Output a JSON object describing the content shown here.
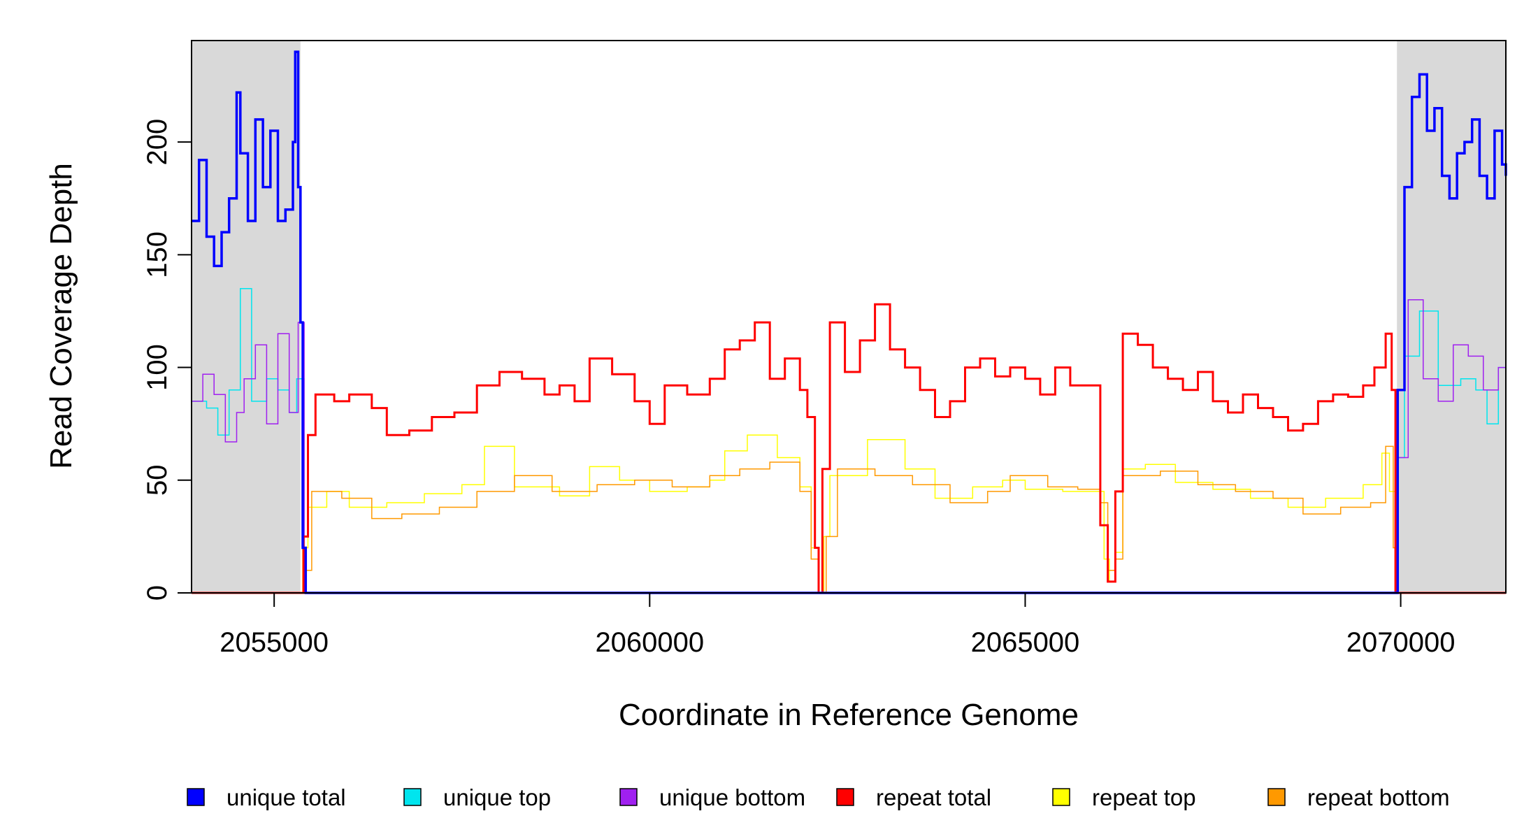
{
  "chart_data": {
    "type": "line",
    "xlabel": "Coordinate in Reference Genome",
    "ylabel": "Read Coverage Depth",
    "xlim": [
      2053900,
      2071400
    ],
    "ylim": [
      0,
      245
    ],
    "x_ticks": [
      {
        "value": 2055000,
        "label": "2055000"
      },
      {
        "value": 2060000,
        "label": "2060000"
      },
      {
        "value": 2065000,
        "label": "2065000"
      },
      {
        "value": 2070000,
        "label": "2070000"
      }
    ],
    "y_ticks": [
      {
        "value": 0,
        "label": "0"
      },
      {
        "value": 50,
        "label": "50"
      },
      {
        "value": 100,
        "label": "100"
      },
      {
        "value": 150,
        "label": "150"
      },
      {
        "value": 200,
        "label": "200"
      }
    ],
    "shaded_regions": [
      {
        "from": 2053900,
        "to": 2055350,
        "color": "#d9d9d9"
      },
      {
        "from": 2069950,
        "to": 2071400,
        "color": "#d9d9d9"
      }
    ],
    "legend_position": "bottom",
    "series": [
      {
        "name": "repeat top",
        "color": "#ffff00",
        "width": 1.5,
        "points": [
          [
            2053900,
            0
          ],
          [
            2055300,
            0
          ],
          [
            2055380,
            20
          ],
          [
            2055450,
            38
          ],
          [
            2055700,
            45
          ],
          [
            2056000,
            38
          ],
          [
            2056500,
            40
          ],
          [
            2057000,
            44
          ],
          [
            2057500,
            48
          ],
          [
            2057800,
            65
          ],
          [
            2058200,
            47
          ],
          [
            2058800,
            43
          ],
          [
            2059200,
            56
          ],
          [
            2059600,
            50
          ],
          [
            2060000,
            45
          ],
          [
            2060500,
            47
          ],
          [
            2060800,
            50
          ],
          [
            2061000,
            63
          ],
          [
            2061300,
            70
          ],
          [
            2061700,
            60
          ],
          [
            2062000,
            47
          ],
          [
            2062150,
            20
          ],
          [
            2062250,
            0
          ],
          [
            2062320,
            25
          ],
          [
            2062400,
            52
          ],
          [
            2062900,
            68
          ],
          [
            2063400,
            55
          ],
          [
            2063800,
            42
          ],
          [
            2064300,
            47
          ],
          [
            2064700,
            50
          ],
          [
            2065000,
            46
          ],
          [
            2065500,
            45
          ],
          [
            2065900,
            45
          ],
          [
            2066050,
            15
          ],
          [
            2066120,
            5
          ],
          [
            2066200,
            18
          ],
          [
            2066300,
            55
          ],
          [
            2066600,
            57
          ],
          [
            2067000,
            49
          ],
          [
            2067500,
            46
          ],
          [
            2068000,
            42
          ],
          [
            2068500,
            38
          ],
          [
            2069000,
            42
          ],
          [
            2069500,
            48
          ],
          [
            2069750,
            62
          ],
          [
            2069850,
            45
          ],
          [
            2069930,
            0
          ],
          [
            2071400,
            0
          ]
        ]
      },
      {
        "name": "repeat bottom",
        "color": "#ff9900",
        "width": 1.5,
        "points": [
          [
            2053900,
            0
          ],
          [
            2055300,
            0
          ],
          [
            2055400,
            10
          ],
          [
            2055500,
            45
          ],
          [
            2055900,
            42
          ],
          [
            2056300,
            33
          ],
          [
            2056700,
            35
          ],
          [
            2057200,
            38
          ],
          [
            2057700,
            45
          ],
          [
            2058200,
            52
          ],
          [
            2058700,
            45
          ],
          [
            2059300,
            48
          ],
          [
            2059800,
            50
          ],
          [
            2060300,
            47
          ],
          [
            2060800,
            52
          ],
          [
            2061200,
            55
          ],
          [
            2061600,
            58
          ],
          [
            2062000,
            45
          ],
          [
            2062150,
            15
          ],
          [
            2062250,
            0
          ],
          [
            2062350,
            25
          ],
          [
            2062500,
            55
          ],
          [
            2063000,
            52
          ],
          [
            2063500,
            48
          ],
          [
            2064000,
            40
          ],
          [
            2064500,
            45
          ],
          [
            2064800,
            52
          ],
          [
            2065300,
            47
          ],
          [
            2065700,
            46
          ],
          [
            2066000,
            40
          ],
          [
            2066100,
            10
          ],
          [
            2066200,
            15
          ],
          [
            2066300,
            52
          ],
          [
            2066800,
            54
          ],
          [
            2067300,
            48
          ],
          [
            2067800,
            45
          ],
          [
            2068300,
            42
          ],
          [
            2068700,
            35
          ],
          [
            2069200,
            38
          ],
          [
            2069600,
            40
          ],
          [
            2069800,
            65
          ],
          [
            2069900,
            20
          ],
          [
            2069930,
            0
          ],
          [
            2071400,
            0
          ]
        ]
      },
      {
        "name": "unique top",
        "color": "#00e5ee",
        "width": 1.5,
        "points": [
          [
            2053900,
            85
          ],
          [
            2054100,
            82
          ],
          [
            2054250,
            70
          ],
          [
            2054400,
            90
          ],
          [
            2054550,
            135
          ],
          [
            2054700,
            85
          ],
          [
            2054900,
            95
          ],
          [
            2055050,
            90
          ],
          [
            2055200,
            80
          ],
          [
            2055300,
            95
          ],
          [
            2055400,
            0
          ],
          [
            2069900,
            0
          ],
          [
            2069960,
            60
          ],
          [
            2070050,
            105
          ],
          [
            2070250,
            125
          ],
          [
            2070500,
            92
          ],
          [
            2070800,
            95
          ],
          [
            2071000,
            90
          ],
          [
            2071150,
            75
          ],
          [
            2071300,
            100
          ],
          [
            2071400,
            95
          ]
        ]
      },
      {
        "name": "unique bottom",
        "color": "#a020f0",
        "width": 1.5,
        "points": [
          [
            2053900,
            85
          ],
          [
            2054050,
            97
          ],
          [
            2054200,
            88
          ],
          [
            2054350,
            67
          ],
          [
            2054500,
            80
          ],
          [
            2054600,
            95
          ],
          [
            2054750,
            110
          ],
          [
            2054900,
            75
          ],
          [
            2055050,
            115
          ],
          [
            2055200,
            80
          ],
          [
            2055320,
            120
          ],
          [
            2055400,
            0
          ],
          [
            2069900,
            0
          ],
          [
            2069960,
            60
          ],
          [
            2070100,
            130
          ],
          [
            2070300,
            95
          ],
          [
            2070500,
            85
          ],
          [
            2070700,
            110
          ],
          [
            2070900,
            105
          ],
          [
            2071100,
            90
          ],
          [
            2071300,
            100
          ],
          [
            2071400,
            95
          ]
        ]
      },
      {
        "name": "repeat total",
        "color": "#ff0000",
        "width": 3,
        "points": [
          [
            2053900,
            0
          ],
          [
            2055300,
            0
          ],
          [
            2055390,
            25
          ],
          [
            2055450,
            70
          ],
          [
            2055550,
            88
          ],
          [
            2055800,
            85
          ],
          [
            2056000,
            88
          ],
          [
            2056300,
            82
          ],
          [
            2056500,
            70
          ],
          [
            2056800,
            72
          ],
          [
            2057100,
            78
          ],
          [
            2057400,
            80
          ],
          [
            2057700,
            92
          ],
          [
            2058000,
            98
          ],
          [
            2058300,
            95
          ],
          [
            2058600,
            88
          ],
          [
            2058800,
            92
          ],
          [
            2059000,
            85
          ],
          [
            2059200,
            104
          ],
          [
            2059500,
            97
          ],
          [
            2059800,
            85
          ],
          [
            2060000,
            75
          ],
          [
            2060200,
            92
          ],
          [
            2060500,
            88
          ],
          [
            2060800,
            95
          ],
          [
            2061000,
            108
          ],
          [
            2061200,
            112
          ],
          [
            2061400,
            120
          ],
          [
            2061600,
            95
          ],
          [
            2061800,
            104
          ],
          [
            2062000,
            90
          ],
          [
            2062100,
            78
          ],
          [
            2062200,
            20
          ],
          [
            2062250,
            0
          ],
          [
            2062300,
            55
          ],
          [
            2062400,
            120
          ],
          [
            2062600,
            98
          ],
          [
            2062800,
            112
          ],
          [
            2063000,
            128
          ],
          [
            2063200,
            108
          ],
          [
            2063400,
            100
          ],
          [
            2063600,
            90
          ],
          [
            2063800,
            78
          ],
          [
            2064000,
            85
          ],
          [
            2064200,
            100
          ],
          [
            2064400,
            104
          ],
          [
            2064600,
            96
          ],
          [
            2064800,
            100
          ],
          [
            2065000,
            95
          ],
          [
            2065200,
            88
          ],
          [
            2065400,
            100
          ],
          [
            2065600,
            92
          ],
          [
            2065900,
            92
          ],
          [
            2066000,
            30
          ],
          [
            2066100,
            5
          ],
          [
            2066200,
            45
          ],
          [
            2066300,
            115
          ],
          [
            2066500,
            110
          ],
          [
            2066700,
            100
          ],
          [
            2066900,
            95
          ],
          [
            2067100,
            90
          ],
          [
            2067300,
            98
          ],
          [
            2067500,
            85
          ],
          [
            2067700,
            80
          ],
          [
            2067900,
            88
          ],
          [
            2068100,
            82
          ],
          [
            2068300,
            78
          ],
          [
            2068500,
            72
          ],
          [
            2068700,
            75
          ],
          [
            2068900,
            85
          ],
          [
            2069100,
            88
          ],
          [
            2069300,
            87
          ],
          [
            2069500,
            92
          ],
          [
            2069650,
            100
          ],
          [
            2069800,
            115
          ],
          [
            2069880,
            90
          ],
          [
            2069930,
            0
          ],
          [
            2071400,
            0
          ]
        ]
      },
      {
        "name": "unique total",
        "color": "#0000ff",
        "width": 3.5,
        "points": [
          [
            2053900,
            165
          ],
          [
            2054000,
            192
          ],
          [
            2054100,
            158
          ],
          [
            2054200,
            145
          ],
          [
            2054300,
            160
          ],
          [
            2054400,
            175
          ],
          [
            2054500,
            222
          ],
          [
            2054550,
            195
          ],
          [
            2054650,
            165
          ],
          [
            2054750,
            210
          ],
          [
            2054850,
            180
          ],
          [
            2054950,
            205
          ],
          [
            2055050,
            165
          ],
          [
            2055150,
            170
          ],
          [
            2055250,
            200
          ],
          [
            2055280,
            240
          ],
          [
            2055320,
            180
          ],
          [
            2055350,
            120
          ],
          [
            2055380,
            20
          ],
          [
            2055420,
            0
          ],
          [
            2069900,
            0
          ],
          [
            2069960,
            90
          ],
          [
            2070050,
            180
          ],
          [
            2070150,
            220
          ],
          [
            2070250,
            230
          ],
          [
            2070350,
            205
          ],
          [
            2070450,
            215
          ],
          [
            2070550,
            185
          ],
          [
            2070650,
            175
          ],
          [
            2070750,
            195
          ],
          [
            2070850,
            200
          ],
          [
            2070950,
            210
          ],
          [
            2071050,
            185
          ],
          [
            2071150,
            175
          ],
          [
            2071250,
            205
          ],
          [
            2071350,
            190
          ],
          [
            2071400,
            185
          ]
        ]
      }
    ],
    "legend": [
      {
        "label": "unique total",
        "color": "#0000ff"
      },
      {
        "label": "unique top",
        "color": "#00e5ee"
      },
      {
        "label": "unique bottom",
        "color": "#a020f0"
      },
      {
        "label": "repeat total",
        "color": "#ff0000"
      },
      {
        "label": "repeat top",
        "color": "#ffff00"
      },
      {
        "label": "repeat bottom",
        "color": "#ff9900"
      }
    ]
  }
}
